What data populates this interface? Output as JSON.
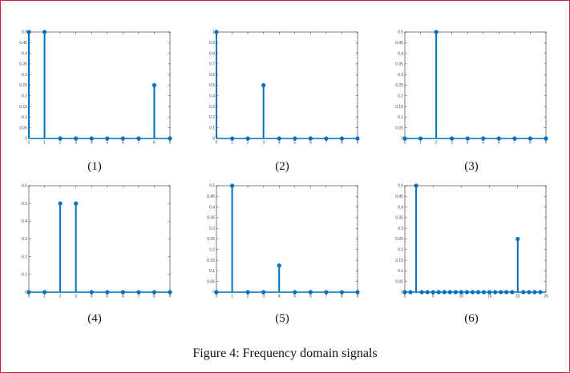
{
  "figure": {
    "caption": "Figure 4: Frequency domain signals",
    "stem_color": "#0072bd",
    "axis_color": "#262626"
  },
  "chart_data": [
    {
      "type": "stem",
      "label": "(1)",
      "x": [
        0,
        1,
        2,
        3,
        4,
        5,
        6,
        7,
        8,
        9
      ],
      "values": [
        0.5,
        0.5,
        0,
        0,
        0,
        0,
        0,
        0,
        0.25,
        0
      ],
      "xlim": [
        0,
        9
      ],
      "ylim": [
        0,
        0.5
      ],
      "xticks": [
        "0",
        "1",
        "2",
        "3",
        "4",
        "5",
        "6",
        "7",
        "8",
        "9"
      ],
      "yticks": [
        "0",
        "0.05",
        "0.1",
        "0.15",
        "0.2",
        "0.25",
        "0.3",
        "0.35",
        "0.4",
        "0.45",
        "0.5"
      ]
    },
    {
      "type": "stem",
      "label": "(2)",
      "x": [
        0,
        1,
        2,
        3,
        4,
        5,
        6,
        7,
        8,
        9
      ],
      "values": [
        1,
        0,
        0,
        0.5,
        0,
        0,
        0,
        0,
        0,
        0
      ],
      "xlim": [
        0,
        9
      ],
      "ylim": [
        0,
        1
      ],
      "xticks": [
        "0",
        "1",
        "2",
        "3",
        "4",
        "5",
        "6",
        "7",
        "8",
        "9"
      ],
      "yticks": [
        "0",
        "0.1",
        "0.2",
        "0.3",
        "0.4",
        "0.5",
        "0.6",
        "0.7",
        "0.8",
        "0.9",
        "1"
      ]
    },
    {
      "type": "stem",
      "label": "(3)",
      "x": [
        0,
        1,
        2,
        3,
        4,
        5,
        6,
        7,
        8,
        9
      ],
      "values": [
        0,
        0,
        0.5,
        0,
        0,
        0,
        0,
        0,
        0,
        0
      ],
      "xlim": [
        0,
        9
      ],
      "ylim": [
        0,
        0.5
      ],
      "xticks": [
        "0",
        "1",
        "2",
        "3",
        "4",
        "5",
        "6",
        "7",
        "8",
        "9"
      ],
      "yticks": [
        "0",
        "0.05",
        "0.1",
        "0.15",
        "0.2",
        "0.25",
        "0.3",
        "0.35",
        "0.4",
        "0.45",
        "0.5"
      ]
    },
    {
      "type": "stem",
      "label": "(4)",
      "x": [
        0,
        1,
        2,
        3,
        4,
        5,
        6,
        7,
        8,
        9
      ],
      "values": [
        0,
        0,
        0.5,
        0.5,
        0,
        0,
        0,
        0,
        0,
        0
      ],
      "xlim": [
        0,
        9
      ],
      "ylim": [
        0,
        0.6
      ],
      "xticks": [
        "0",
        "1",
        "2",
        "3",
        "4",
        "5",
        "6",
        "7",
        "8",
        "9"
      ],
      "yticks": [
        "0",
        "0.1",
        "0.2",
        "0.3",
        "0.4",
        "0.5",
        "0.6"
      ]
    },
    {
      "type": "stem",
      "label": "(5)",
      "x": [
        0,
        1,
        2,
        3,
        4,
        5,
        6,
        7,
        8,
        9
      ],
      "values": [
        0,
        0.5,
        0,
        0,
        0.125,
        0,
        0,
        0,
        0,
        0
      ],
      "xlim": [
        0,
        9
      ],
      "ylim": [
        0,
        0.5
      ],
      "xticks": [
        "0",
        "1",
        "2",
        "3",
        "4",
        "5",
        "6",
        "7",
        "8",
        "9"
      ],
      "yticks": [
        "0",
        "0.05",
        "0.1",
        "0.15",
        "0.2",
        "0.25",
        "0.3",
        "0.35",
        "0.4",
        "0.45",
        "0.5"
      ]
    },
    {
      "type": "stem",
      "label": "(6)",
      "x": [
        0,
        1,
        2,
        3,
        4,
        5,
        6,
        7,
        8,
        9,
        10,
        11,
        12,
        13,
        14,
        15,
        16,
        17,
        18,
        19,
        20,
        21,
        22,
        23,
        24
      ],
      "values": [
        0,
        0,
        0.5,
        0,
        0,
        0,
        0,
        0,
        0,
        0,
        0,
        0,
        0,
        0,
        0,
        0,
        0,
        0,
        0,
        0,
        0.25,
        0,
        0,
        0,
        0
      ],
      "xlim": [
        0,
        25
      ],
      "ylim": [
        0,
        0.5
      ],
      "xticks": [
        "0",
        "5",
        "10",
        "15",
        "20",
        "25"
      ],
      "xtick_values": [
        0,
        5,
        10,
        15,
        20,
        25
      ],
      "yticks": [
        "0",
        "0.05",
        "0.1",
        "0.15",
        "0.2",
        "0.25",
        "0.3",
        "0.35",
        "0.4",
        "0.45",
        "0.5"
      ]
    }
  ]
}
